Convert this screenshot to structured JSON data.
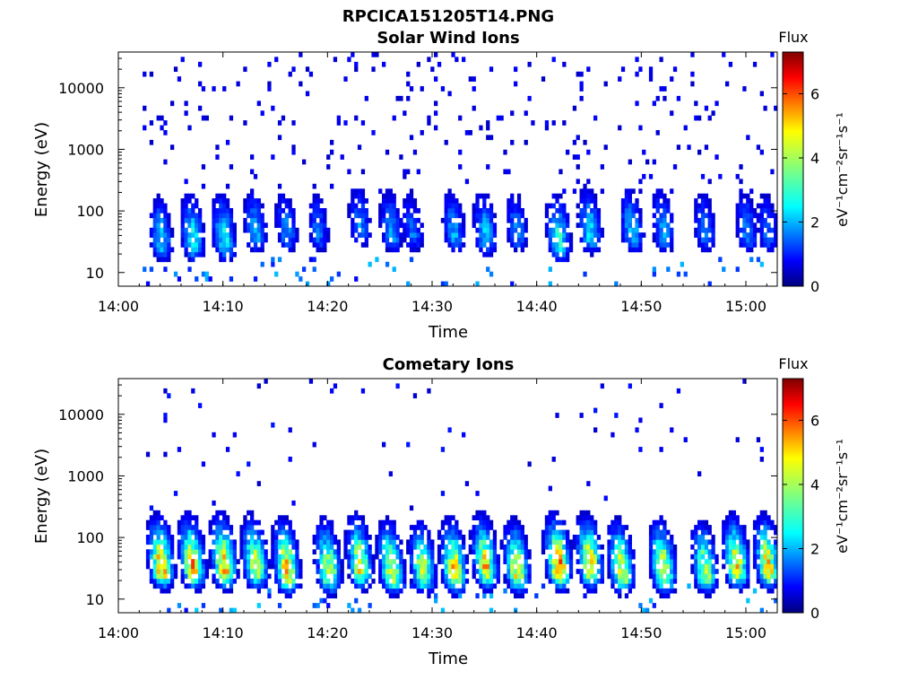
{
  "figure_title": "RPCICA151205T14.PNG",
  "chart_data": [
    {
      "type": "heatmap",
      "title": "Solar Wind Ions",
      "xlabel": "Time",
      "ylabel": "Energy (eV)",
      "x_ticks": [
        "14:00",
        "14:10",
        "14:20",
        "14:30",
        "14:40",
        "14:50",
        "15:00"
      ],
      "x_range": [
        "14:00",
        "15:03"
      ],
      "y_scale": "log",
      "y_ticks": [
        10,
        100,
        1000,
        10000
      ],
      "y_tick_labels": [
        "10",
        "100",
        "1000",
        "10000"
      ],
      "y_range": [
        6,
        38000
      ],
      "grid": false,
      "colorbar": {
        "title": "Flux",
        "label": "eV⁻¹cm⁻²sr⁻¹s⁻¹",
        "range": [
          0,
          7.3
        ],
        "ticks": [
          0,
          2,
          4,
          6
        ],
        "tick_labels": [
          "0",
          "2",
          "4",
          "6"
        ],
        "colormap": "jet"
      },
      "bursts": [
        {
          "time": "14:04",
          "peak_energy_eV": 30,
          "peak_flux": 2.5
        },
        {
          "time": "14:07",
          "peak_energy_eV": 30,
          "peak_flux": 3.0
        },
        {
          "time": "14:10",
          "peak_energy_eV": 30,
          "peak_flux": 3.0
        },
        {
          "time": "14:13",
          "peak_energy_eV": 40,
          "peak_flux": 2.2
        },
        {
          "time": "14:16",
          "peak_energy_eV": 40,
          "peak_flux": 2.0
        },
        {
          "time": "14:19",
          "peak_energy_eV": 40,
          "peak_flux": 1.8
        },
        {
          "time": "14:23",
          "peak_energy_eV": 50,
          "peak_flux": 2.0
        },
        {
          "time": "14:26",
          "peak_energy_eV": 40,
          "peak_flux": 2.2
        },
        {
          "time": "14:28",
          "peak_energy_eV": 40,
          "peak_flux": 1.8
        },
        {
          "time": "14:32",
          "peak_energy_eV": 40,
          "peak_flux": 2.2
        },
        {
          "time": "14:35",
          "peak_energy_eV": 35,
          "peak_flux": 2.5
        },
        {
          "time": "14:38",
          "peak_energy_eV": 40,
          "peak_flux": 2.0
        },
        {
          "time": "14:42",
          "peak_energy_eV": 30,
          "peak_flux": 3.2
        },
        {
          "time": "14:45",
          "peak_energy_eV": 40,
          "peak_flux": 2.8
        },
        {
          "time": "14:49",
          "peak_energy_eV": 40,
          "peak_flux": 2.5
        },
        {
          "time": "14:52",
          "peak_energy_eV": 40,
          "peak_flux": 2.2
        },
        {
          "time": "14:56",
          "peak_energy_eV": 40,
          "peak_flux": 2.0
        },
        {
          "time": "15:00",
          "peak_energy_eV": 40,
          "peak_flux": 2.0
        },
        {
          "time": "15:02",
          "peak_energy_eV": 40,
          "peak_flux": 1.8
        }
      ],
      "background_flux": 0.8
    },
    {
      "type": "heatmap",
      "title": "Cometary Ions",
      "xlabel": "Time",
      "ylabel": "Energy (eV)",
      "x_ticks": [
        "14:00",
        "14:10",
        "14:20",
        "14:30",
        "14:40",
        "14:50",
        "15:00"
      ],
      "x_range": [
        "14:00",
        "15:03"
      ],
      "y_scale": "log",
      "y_ticks": [
        10,
        100,
        1000,
        10000
      ],
      "y_tick_labels": [
        "10",
        "100",
        "1000",
        "10000"
      ],
      "y_range": [
        6,
        38000
      ],
      "grid": false,
      "colorbar": {
        "title": "Flux",
        "label": "eV⁻¹cm⁻²sr⁻¹s⁻¹",
        "range": [
          0,
          7.3
        ],
        "ticks": [
          0,
          2,
          4,
          6
        ],
        "tick_labels": [
          "0",
          "2",
          "4",
          "6"
        ],
        "colormap": "jet"
      },
      "bursts": [
        {
          "time": "14:04",
          "peak_energy_eV": 30,
          "peak_flux": 5.5
        },
        {
          "time": "14:07",
          "peak_energy_eV": 30,
          "peak_flux": 5.5
        },
        {
          "time": "14:10",
          "peak_energy_eV": 30,
          "peak_flux": 5.5
        },
        {
          "time": "14:13",
          "peak_energy_eV": 30,
          "peak_flux": 4.8
        },
        {
          "time": "14:16",
          "peak_energy_eV": 25,
          "peak_flux": 5.5
        },
        {
          "time": "14:20",
          "peak_energy_eV": 25,
          "peak_flux": 4.8
        },
        {
          "time": "14:23",
          "peak_energy_eV": 30,
          "peak_flux": 4.8
        },
        {
          "time": "14:26",
          "peak_energy_eV": 25,
          "peak_flux": 4.8
        },
        {
          "time": "14:29",
          "peak_energy_eV": 25,
          "peak_flux": 4.5
        },
        {
          "time": "14:32",
          "peak_energy_eV": 25,
          "peak_flux": 5.5
        },
        {
          "time": "14:35",
          "peak_energy_eV": 30,
          "peak_flux": 5.2
        },
        {
          "time": "14:38",
          "peak_energy_eV": 25,
          "peak_flux": 5.0
        },
        {
          "time": "14:42",
          "peak_energy_eV": 30,
          "peak_flux": 6.0
        },
        {
          "time": "14:45",
          "peak_energy_eV": 30,
          "peak_flux": 5.5
        },
        {
          "time": "14:48",
          "peak_energy_eV": 25,
          "peak_flux": 5.0
        },
        {
          "time": "14:52",
          "peak_energy_eV": 25,
          "peak_flux": 5.2
        },
        {
          "time": "14:56",
          "peak_energy_eV": 25,
          "peak_flux": 4.5
        },
        {
          "time": "14:59",
          "peak_energy_eV": 30,
          "peak_flux": 5.2
        },
        {
          "time": "15:02",
          "peak_energy_eV": 30,
          "peak_flux": 5.2
        }
      ],
      "background_flux": 0.9
    }
  ]
}
